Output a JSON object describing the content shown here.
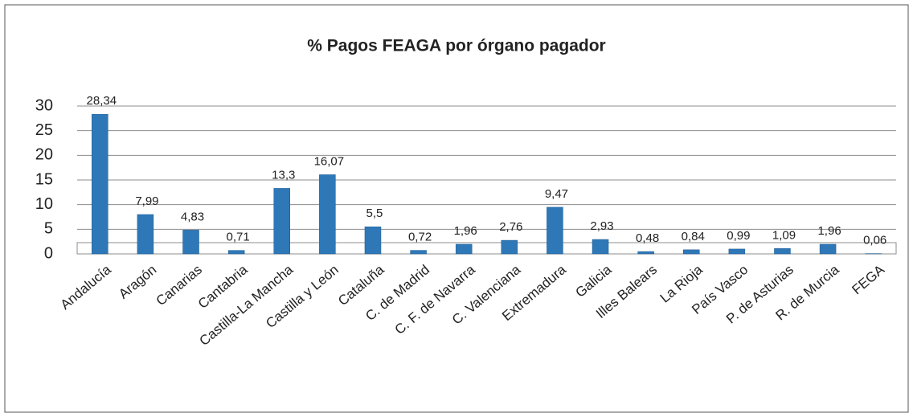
{
  "chart_data": {
    "type": "bar",
    "title": "% Pagos FEAGA por órgano pagador",
    "categories": [
      "Andalucía",
      "Aragón",
      "Canarias",
      "Cantabria",
      "Castilla-La Mancha",
      "Castilla y León",
      "Cataluña",
      "C. de Madrid",
      "C. F. de Navarra",
      "C. Valenciana",
      "Extremadura",
      "Galicia",
      "Illes Balears",
      "La Rioja",
      "País Vasco",
      "P. de Asturias",
      "R. de Murcia",
      "FEGA"
    ],
    "values": [
      28.34,
      7.99,
      4.83,
      0.71,
      13.3,
      16.07,
      5.5,
      0.72,
      1.96,
      2.76,
      9.47,
      2.93,
      0.48,
      0.84,
      0.99,
      1.09,
      1.96,
      0.06
    ],
    "value_labels": [
      "28,34",
      "7,99",
      "4,83",
      "0,71",
      "13,3",
      "16,07",
      "5,5",
      "0,72",
      "1,96",
      "2,76",
      "9,47",
      "2,93",
      "0,48",
      "0,84",
      "0,99",
      "1,09",
      "1,96",
      "0,06"
    ],
    "color": "#2e78b8",
    "ylim": [
      0,
      30
    ],
    "yticks": [
      0,
      5,
      10,
      15,
      20,
      25,
      30
    ],
    "grid": true
  }
}
